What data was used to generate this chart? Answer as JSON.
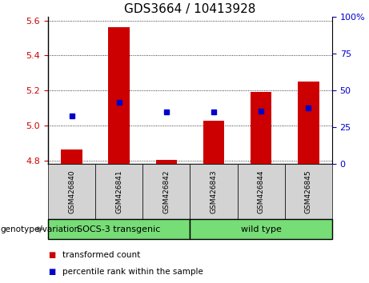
{
  "title": "GDS3664 / 10413928",
  "samples": [
    "GSM426840",
    "GSM426841",
    "GSM426842",
    "GSM426843",
    "GSM426844",
    "GSM426845"
  ],
  "red_values": [
    4.862,
    5.562,
    4.802,
    5.03,
    5.19,
    5.25
  ],
  "blue_values": [
    5.053,
    5.133,
    5.08,
    5.078,
    5.082,
    5.1
  ],
  "ylim_left": [
    4.78,
    5.62
  ],
  "ylim_right": [
    0,
    100
  ],
  "yticks_left": [
    4.8,
    5.0,
    5.2,
    5.4,
    5.6
  ],
  "yticks_right": [
    0,
    25,
    50,
    75,
    100
  ],
  "ytick_right_labels": [
    "0",
    "25",
    "50",
    "75",
    "100%"
  ],
  "baseline": 4.78,
  "sample_bg_color": "#d3d3d3",
  "green_color": "#77dd77",
  "red_color": "#cc0000",
  "blue_color": "#0000cc",
  "title_fontsize": 11,
  "axis_color_left": "#cc0000",
  "axis_color_right": "#0000cc",
  "group1_label": "SOCS-3 transgenic",
  "group2_label": "wild type",
  "genotype_label": "genotype/variation",
  "legend_red": "transformed count",
  "legend_blue": "percentile rank within the sample"
}
